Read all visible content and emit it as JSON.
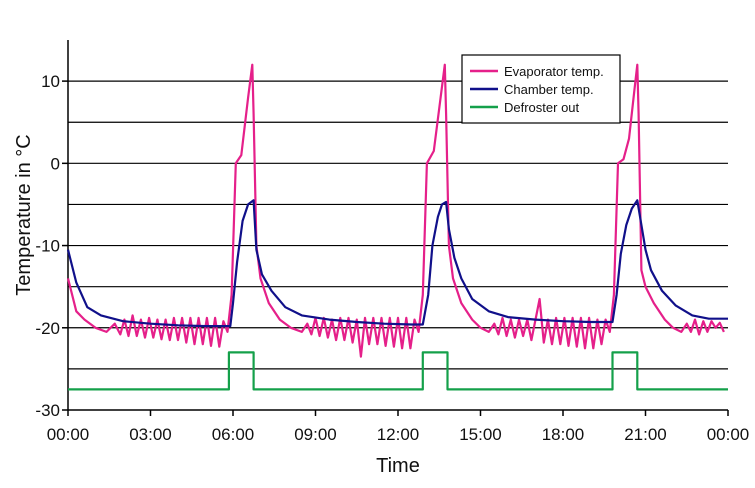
{
  "chart_data": {
    "type": "line",
    "xlabel": "Time",
    "ylabel": "Temperature in °C",
    "xlim": [
      0,
      24
    ],
    "ylim": [
      -30,
      15
    ],
    "grid": "horizontal",
    "legend_position": "top-right",
    "x_ticks": [
      {
        "value": 0,
        "label": "00:00"
      },
      {
        "value": 3,
        "label": "03:00"
      },
      {
        "value": 6,
        "label": "06:00"
      },
      {
        "value": 9,
        "label": "09:00"
      },
      {
        "value": 12,
        "label": "12:00"
      },
      {
        "value": 15,
        "label": "15:00"
      },
      {
        "value": 18,
        "label": "18:00"
      },
      {
        "value": 21,
        "label": "21:00"
      },
      {
        "value": 24,
        "label": "00:00"
      }
    ],
    "y_ticks": [
      {
        "value": 10,
        "label": "10"
      },
      {
        "value": 0,
        "label": "0"
      },
      {
        "value": -10,
        "label": "-10"
      },
      {
        "value": -20,
        "label": "-20"
      },
      {
        "value": -30,
        "label": "-30"
      }
    ],
    "gridlines_y": [
      10,
      5,
      0,
      -5,
      -10,
      -15,
      -20,
      -25
    ],
    "series": [
      {
        "name": "Evaporator temp.",
        "color": "#e5208a",
        "points": [
          [
            0,
            -14
          ],
          [
            0.3,
            -18
          ],
          [
            0.6,
            -19
          ],
          [
            1.0,
            -20
          ],
          [
            1.4,
            -20.5
          ],
          [
            1.7,
            -19.5
          ],
          [
            1.9,
            -20.8
          ],
          [
            2.05,
            -19
          ],
          [
            2.2,
            -21
          ],
          [
            2.35,
            -18.5
          ],
          [
            2.5,
            -21
          ],
          [
            2.65,
            -19
          ],
          [
            2.8,
            -21.2
          ],
          [
            2.95,
            -18.8
          ],
          [
            3.1,
            -21.2
          ],
          [
            3.25,
            -19
          ],
          [
            3.4,
            -21.4
          ],
          [
            3.55,
            -19
          ],
          [
            3.7,
            -21.5
          ],
          [
            3.85,
            -18.8
          ],
          [
            4.0,
            -21.5
          ],
          [
            4.15,
            -18.8
          ],
          [
            4.3,
            -21.8
          ],
          [
            4.45,
            -18.8
          ],
          [
            4.6,
            -22
          ],
          [
            4.75,
            -18.8
          ],
          [
            4.9,
            -22
          ],
          [
            5.05,
            -18.8
          ],
          [
            5.2,
            -22.2
          ],
          [
            5.35,
            -18.8
          ],
          [
            5.5,
            -22.3
          ],
          [
            5.65,
            -19.2
          ],
          [
            5.8,
            -20.5
          ],
          [
            5.95,
            -16
          ],
          [
            6.1,
            0
          ],
          [
            6.3,
            1
          ],
          [
            6.55,
            8
          ],
          [
            6.7,
            12
          ],
          [
            6.75,
            6
          ],
          [
            6.85,
            -10
          ],
          [
            7.0,
            -14
          ],
          [
            7.3,
            -17
          ],
          [
            7.7,
            -19
          ],
          [
            8.1,
            -20
          ],
          [
            8.5,
            -20.5
          ],
          [
            8.7,
            -19.5
          ],
          [
            8.85,
            -20.8
          ],
          [
            9.0,
            -18.8
          ],
          [
            9.15,
            -21
          ],
          [
            9.3,
            -18.8
          ],
          [
            9.45,
            -21.2
          ],
          [
            9.6,
            -19
          ],
          [
            9.75,
            -21.5
          ],
          [
            9.9,
            -18.8
          ],
          [
            10.05,
            -21.5
          ],
          [
            10.2,
            -18.8
          ],
          [
            10.35,
            -21.8
          ],
          [
            10.5,
            -19
          ],
          [
            10.65,
            -23.5
          ],
          [
            10.8,
            -18.8
          ],
          [
            10.95,
            -22
          ],
          [
            11.1,
            -18.8
          ],
          [
            11.25,
            -22
          ],
          [
            11.4,
            -18.8
          ],
          [
            11.55,
            -22.2
          ],
          [
            11.7,
            -18.8
          ],
          [
            11.85,
            -22.3
          ],
          [
            12.0,
            -18.8
          ],
          [
            12.15,
            -22.5
          ],
          [
            12.3,
            -18.8
          ],
          [
            12.45,
            -22.5
          ],
          [
            12.6,
            -19
          ],
          [
            12.75,
            -20.5
          ],
          [
            12.9,
            -16
          ],
          [
            13.05,
            0
          ],
          [
            13.3,
            1.5
          ],
          [
            13.55,
            8
          ],
          [
            13.7,
            12
          ],
          [
            13.75,
            6
          ],
          [
            13.85,
            -10
          ],
          [
            14.0,
            -14
          ],
          [
            14.3,
            -17
          ],
          [
            14.7,
            -19
          ],
          [
            15.0,
            -20
          ],
          [
            15.3,
            -20.5
          ],
          [
            15.5,
            -19.5
          ],
          [
            15.65,
            -20.8
          ],
          [
            15.8,
            -18.8
          ],
          [
            15.95,
            -21
          ],
          [
            16.1,
            -19
          ],
          [
            16.25,
            -21.2
          ],
          [
            16.4,
            -19
          ],
          [
            16.55,
            -21
          ],
          [
            16.7,
            -19
          ],
          [
            16.85,
            -21.5
          ],
          [
            17.0,
            -19
          ],
          [
            17.15,
            -16.5
          ],
          [
            17.3,
            -21.8
          ],
          [
            17.45,
            -19
          ],
          [
            17.6,
            -22
          ],
          [
            17.75,
            -18.8
          ],
          [
            17.9,
            -22
          ],
          [
            18.05,
            -18.8
          ],
          [
            18.2,
            -22.2
          ],
          [
            18.35,
            -18.8
          ],
          [
            18.5,
            -22.3
          ],
          [
            18.65,
            -18.8
          ],
          [
            18.8,
            -22.5
          ],
          [
            18.95,
            -18.8
          ],
          [
            19.1,
            -22.5
          ],
          [
            19.25,
            -19
          ],
          [
            19.4,
            -22
          ],
          [
            19.55,
            -19
          ],
          [
            19.7,
            -20.5
          ],
          [
            19.85,
            -16
          ],
          [
            20.0,
            0
          ],
          [
            20.2,
            0.5
          ],
          [
            20.4,
            3
          ],
          [
            20.6,
            9
          ],
          [
            20.7,
            12
          ],
          [
            20.75,
            6
          ],
          [
            20.85,
            -13
          ],
          [
            21.0,
            -15
          ],
          [
            21.3,
            -17
          ],
          [
            21.7,
            -19
          ],
          [
            22.0,
            -20
          ],
          [
            22.3,
            -20.5
          ],
          [
            22.5,
            -19.5
          ],
          [
            22.65,
            -20.5
          ],
          [
            22.8,
            -19
          ],
          [
            22.95,
            -20.8
          ],
          [
            23.1,
            -19.2
          ],
          [
            23.25,
            -20.5
          ],
          [
            23.4,
            -19.2
          ],
          [
            23.55,
            -20
          ],
          [
            23.7,
            -19.4
          ],
          [
            23.85,
            -20.5
          ]
        ]
      },
      {
        "name": "Chamber temp.",
        "color": "#10108a",
        "points": [
          [
            0,
            -10.5
          ],
          [
            0.3,
            -14.5
          ],
          [
            0.7,
            -17.5
          ],
          [
            1.2,
            -18.5
          ],
          [
            2.0,
            -19.2
          ],
          [
            3.0,
            -19.5
          ],
          [
            4.0,
            -19.7
          ],
          [
            5.0,
            -19.8
          ],
          [
            5.9,
            -19.8
          ],
          [
            6.0,
            -17
          ],
          [
            6.15,
            -12
          ],
          [
            6.35,
            -7
          ],
          [
            6.55,
            -5
          ],
          [
            6.75,
            -4.5
          ],
          [
            6.85,
            -10.5
          ],
          [
            7.05,
            -13.5
          ],
          [
            7.4,
            -15.5
          ],
          [
            7.9,
            -17.5
          ],
          [
            8.5,
            -18.5
          ],
          [
            9.5,
            -19
          ],
          [
            10.5,
            -19.3
          ],
          [
            11.5,
            -19.5
          ],
          [
            12.5,
            -19.6
          ],
          [
            12.9,
            -19.6
          ],
          [
            13.1,
            -16
          ],
          [
            13.25,
            -10
          ],
          [
            13.45,
            -6.5
          ],
          [
            13.6,
            -5
          ],
          [
            13.75,
            -4.7
          ],
          [
            13.85,
            -8
          ],
          [
            14.05,
            -11.5
          ],
          [
            14.3,
            -14
          ],
          [
            14.7,
            -16.5
          ],
          [
            15.3,
            -18
          ],
          [
            16.0,
            -18.7
          ],
          [
            17.0,
            -19
          ],
          [
            18.0,
            -19.2
          ],
          [
            19.0,
            -19.3
          ],
          [
            19.8,
            -19.3
          ],
          [
            19.95,
            -16
          ],
          [
            20.1,
            -11
          ],
          [
            20.3,
            -7.5
          ],
          [
            20.5,
            -5.5
          ],
          [
            20.7,
            -4.5
          ],
          [
            20.85,
            -7.5
          ],
          [
            21.0,
            -10.5
          ],
          [
            21.2,
            -13
          ],
          [
            21.6,
            -15.5
          ],
          [
            22.1,
            -17.3
          ],
          [
            22.7,
            -18.5
          ],
          [
            23.3,
            -18.9
          ],
          [
            24,
            -18.9
          ]
        ]
      },
      {
        "name": "Defroster out",
        "color": "#14a04a",
        "points": [
          [
            0,
            -27.5
          ],
          [
            5.85,
            -27.5
          ],
          [
            5.85,
            -23
          ],
          [
            6.75,
            -23
          ],
          [
            6.75,
            -27.5
          ],
          [
            12.9,
            -27.5
          ],
          [
            12.9,
            -23
          ],
          [
            13.8,
            -23
          ],
          [
            13.8,
            -27.5
          ],
          [
            19.8,
            -27.5
          ],
          [
            19.8,
            -23
          ],
          [
            20.7,
            -23
          ],
          [
            20.7,
            -27.5
          ],
          [
            24,
            -27.5
          ]
        ]
      }
    ]
  }
}
